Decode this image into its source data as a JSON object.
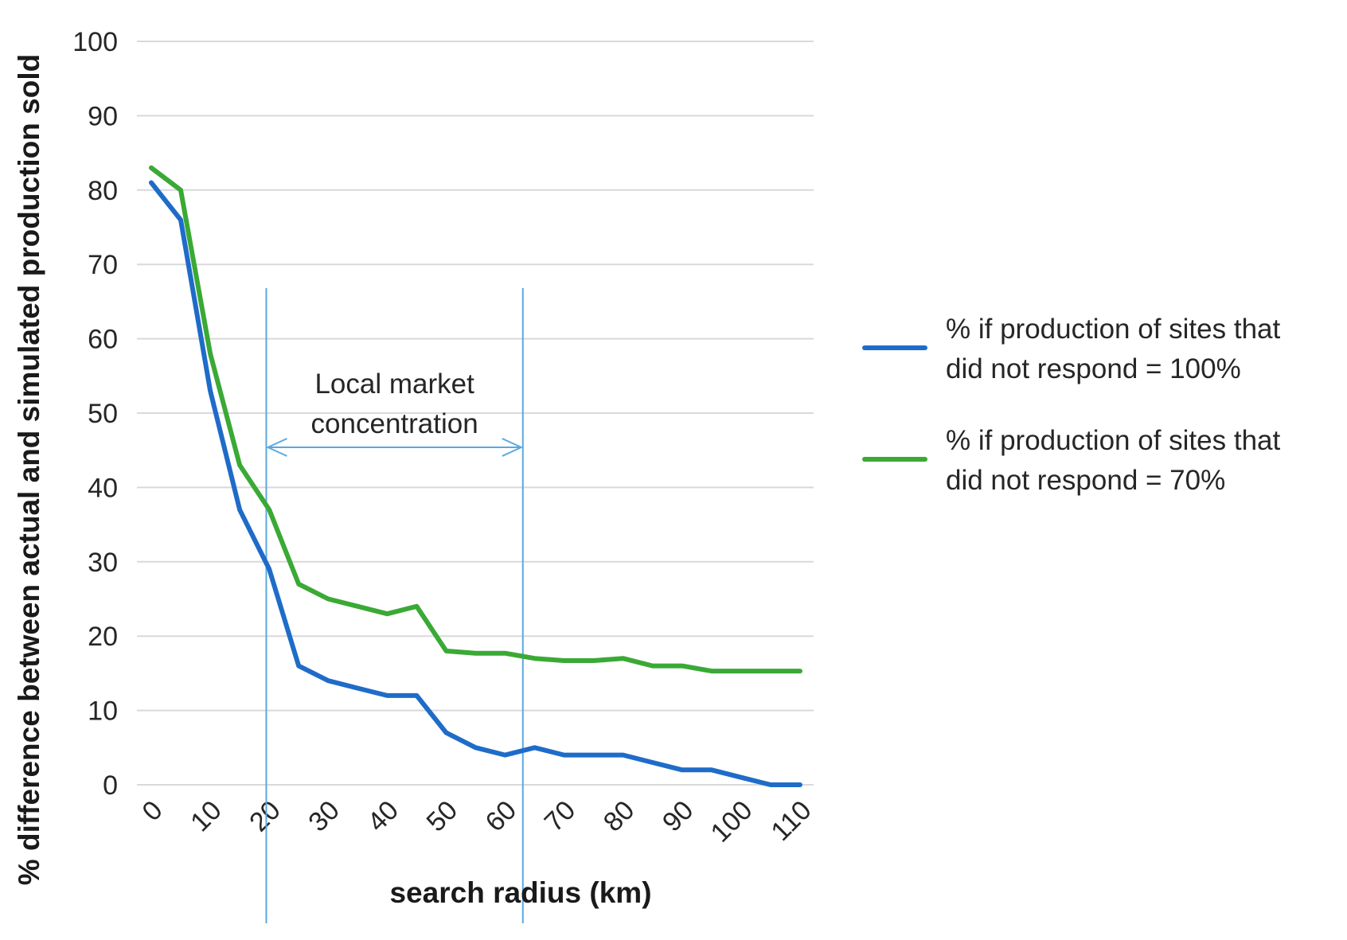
{
  "chart_data": {
    "type": "line",
    "title": "",
    "xlabel": "search radius (km)",
    "ylabel": "% difference between actual and simulated production sold",
    "ylim": [
      0,
      100
    ],
    "xlim": [
      0,
      110
    ],
    "y_ticks": [
      "0",
      "10",
      "20",
      "30",
      "40",
      "50",
      "60",
      "70",
      "80",
      "90",
      "100"
    ],
    "x_ticks": [
      "0",
      "10",
      "20",
      "30",
      "40",
      "50",
      "60",
      "70",
      "80",
      "90",
      "100",
      "110"
    ],
    "x": [
      0,
      5,
      10,
      15,
      20,
      25,
      30,
      35,
      40,
      45,
      50,
      55,
      60,
      65,
      70,
      75,
      80,
      85,
      90,
      95,
      100,
      105,
      110
    ],
    "series": [
      {
        "name": "% if production of sites that did not respond = 100%",
        "legend_lines": [
          "% if production of sites that",
          "did not respond = 100%"
        ],
        "color": "#1f6cc8",
        "values": [
          81,
          76,
          53,
          37,
          29,
          16,
          14,
          13,
          12,
          12,
          7,
          5,
          4,
          5,
          4,
          4,
          4,
          3,
          2,
          2,
          1,
          0,
          0
        ]
      },
      {
        "name": "% if production of sites that did not respond = 70%",
        "legend_lines": [
          "% if production of sites that",
          "did not respond = 70%"
        ],
        "color": "#3aa935",
        "values": [
          83,
          80,
          58,
          43,
          37,
          27,
          25,
          24,
          23,
          24,
          18,
          17.7,
          17.7,
          17,
          16.7,
          16.7,
          17,
          16,
          16,
          15.3,
          15.3,
          15.3,
          15.3
        ]
      }
    ],
    "annotation": {
      "lines": [
        "Local market",
        "concentration"
      ],
      "range": [
        19.5,
        63
      ],
      "color": "#5ba8e0"
    },
    "grid": true,
    "legend_position": "right"
  }
}
